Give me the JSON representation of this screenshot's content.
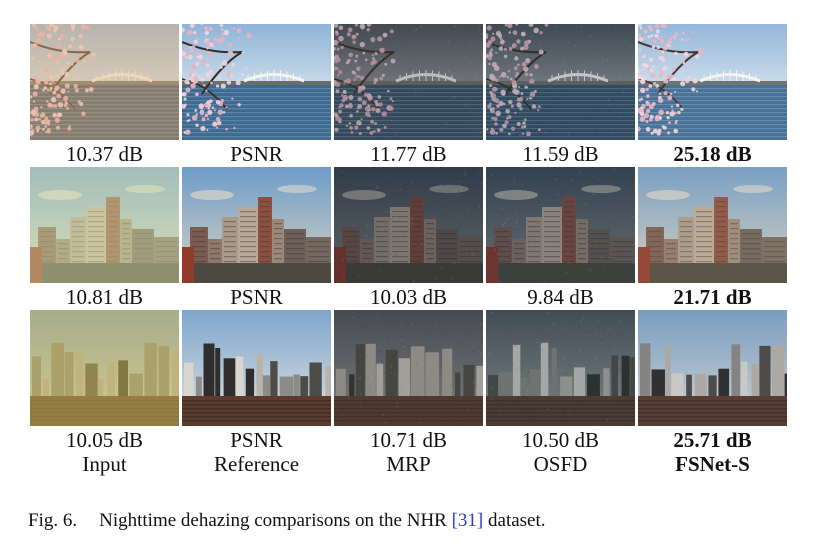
{
  "figure": {
    "rows": [
      {
        "scene": "blossom-lake",
        "cells": [
          {
            "caption": "10.37 dB",
            "bold": false
          },
          {
            "caption": "PSNR",
            "bold": false
          },
          {
            "caption": "11.77 dB",
            "bold": false
          },
          {
            "caption": "11.59 dB",
            "bold": false
          },
          {
            "caption": "25.18 dB",
            "bold": true
          }
        ]
      },
      {
        "scene": "city-towers",
        "cells": [
          {
            "caption": "10.81 dB",
            "bold": false
          },
          {
            "caption": "PSNR",
            "bold": false
          },
          {
            "caption": "10.03 dB",
            "bold": false
          },
          {
            "caption": "9.84 dB",
            "bold": false
          },
          {
            "caption": "21.71 dB",
            "bold": true
          }
        ]
      },
      {
        "scene": "skyline",
        "cells": [
          {
            "caption": "10.05 dB",
            "bold": false
          },
          {
            "caption": "PSNR",
            "bold": false
          },
          {
            "caption": "10.71 dB",
            "bold": false
          },
          {
            "caption": "10.50 dB",
            "bold": false
          },
          {
            "caption": "25.71 dB",
            "bold": true
          }
        ]
      }
    ],
    "methods": [
      "Input",
      "Reference",
      "MRP",
      "OSFD",
      "FSNet-S"
    ],
    "caption": {
      "label": "Fig. 6.",
      "text_before": "Nighttime dehazing comparisons on the NHR ",
      "ref": "[31]",
      "text_after": " dataset."
    }
  }
}
